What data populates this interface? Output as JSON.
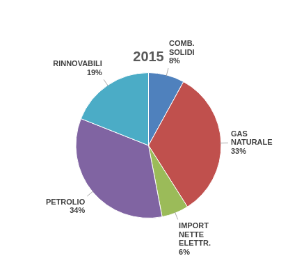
{
  "chart_data": {
    "type": "pie",
    "title": "2015",
    "categories": [
      "COMB. SOLIDI",
      "GAS NATURALE",
      "IMPORT NETTE ELETTR.",
      "PETROLIO",
      "RINNOVABILI"
    ],
    "values": [
      8,
      33,
      6,
      34,
      19
    ],
    "value_labels": [
      "8%",
      "33%",
      "6%",
      "34%",
      "19%"
    ],
    "colors": [
      "#4f81bd",
      "#c0504d",
      "#9bbb59",
      "#8064a2",
      "#4bacc6"
    ],
    "data_labels": true
  }
}
